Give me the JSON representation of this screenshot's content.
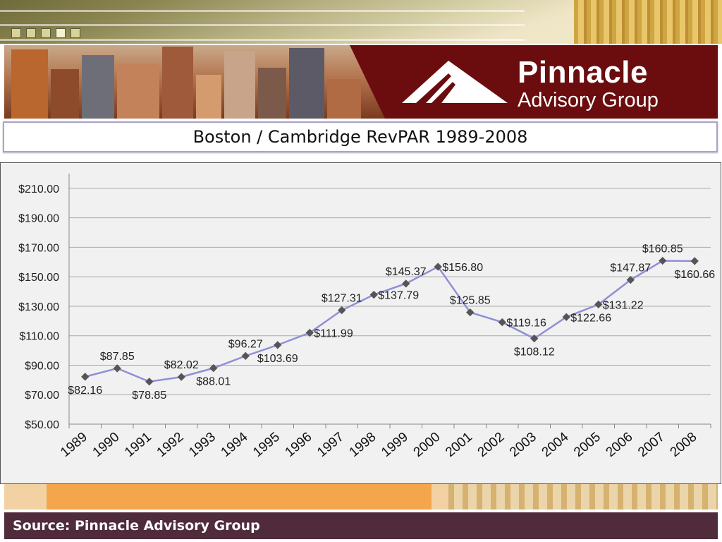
{
  "brand": {
    "name_line1": "Pinnacle",
    "name_line2": "Advisory Group"
  },
  "slide_title": "Boston / Cambridge RevPAR 1989-2008",
  "footer": {
    "source": "Source: Pinnacle Advisory Group"
  },
  "colors": {
    "line": "#8f8fd6",
    "marker": "#555555",
    "banner": "#6b0d0e",
    "footer": "#4f2b3c"
  },
  "chart_data": {
    "type": "line",
    "title": "",
    "xlabel": "",
    "ylabel": "",
    "categories": [
      "1989",
      "1990",
      "1991",
      "1992",
      "1993",
      "1994",
      "1995",
      "1996",
      "1997",
      "1998",
      "1999",
      "2000",
      "2001",
      "2002",
      "2003",
      "2004",
      "2005",
      "2006",
      "2007",
      "2008"
    ],
    "values": [
      82.16,
      87.85,
      78.85,
      82.02,
      88.01,
      96.27,
      103.69,
      111.99,
      127.31,
      137.79,
      145.37,
      156.8,
      125.85,
      119.16,
      108.12,
      122.66,
      131.22,
      147.87,
      160.85,
      160.66
    ],
    "data_labels": [
      "$82.16",
      "$87.85",
      "$78.85",
      "$82.02",
      "$88.01",
      "$96.27",
      "$103.69",
      "$111.99",
      "$127.31",
      "$137.79",
      "$145.37",
      "$156.80",
      "$125.85",
      "$119.16",
      "$108.12",
      "$122.66",
      "$131.22",
      "$147.87",
      "$160.85",
      "$160.66"
    ],
    "label_position": [
      "below",
      "above",
      "below",
      "above",
      "below",
      "above",
      "below",
      "right",
      "above",
      "right",
      "above",
      "right",
      "above",
      "right",
      "below",
      "right",
      "right",
      "above",
      "above",
      "below"
    ],
    "y_ticks": [
      50,
      70,
      90,
      110,
      130,
      150,
      170,
      190,
      210
    ],
    "y_tick_labels": [
      "$50.00",
      "$70.00",
      "$90.00",
      "$110.00",
      "$130.00",
      "$150.00",
      "$170.00",
      "$190.00",
      "$210.00"
    ],
    "ylim": [
      50,
      220
    ],
    "grid": true,
    "legend": "none"
  }
}
